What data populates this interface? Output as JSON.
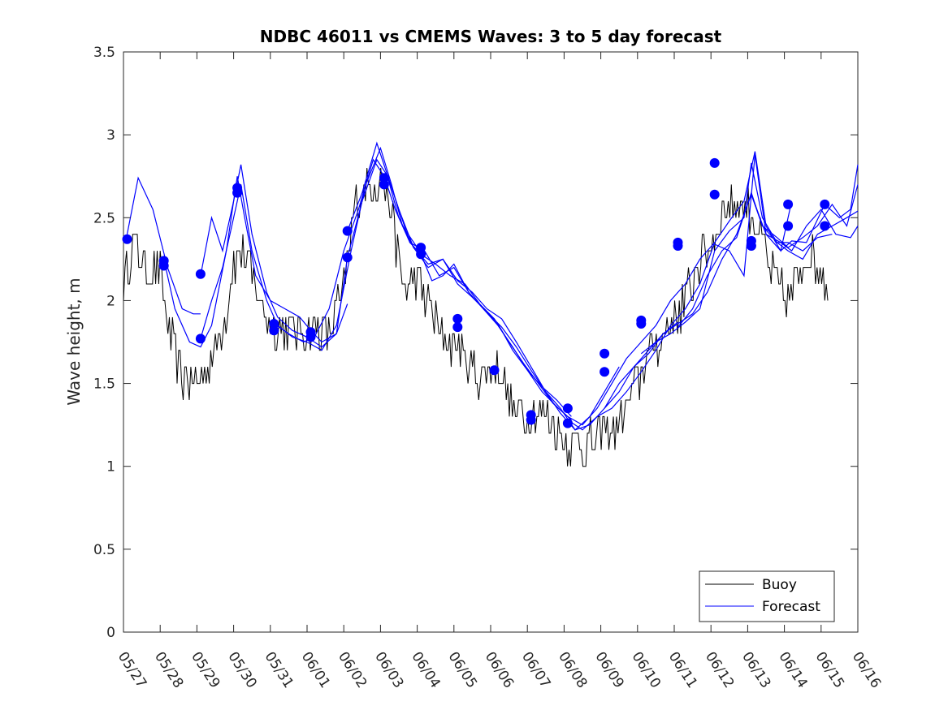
{
  "chart_data": {
    "type": "line",
    "title": "NDBC 46011 vs CMEMS Waves: 3 to 5 day forecast",
    "xlabel": "",
    "ylabel": "Wave height, m",
    "ylim": [
      0,
      3.5
    ],
    "xlim": [
      0,
      20
    ],
    "yticks": [
      0,
      0.5,
      1,
      1.5,
      2,
      2.5,
      3,
      3.5
    ],
    "ytick_labels": [
      "0",
      "0.5",
      "1",
      "1.5",
      "2",
      "2.5",
      "3",
      "3.5"
    ],
    "xtick_labels": [
      "05/27",
      "05/28",
      "05/29",
      "05/30",
      "05/31",
      "06/01",
      "06/02",
      "06/03",
      "06/04",
      "06/05",
      "06/06",
      "06/07",
      "06/08",
      "06/09",
      "06/10",
      "06/11",
      "06/12",
      "06/13",
      "06/14",
      "06/15",
      "06/16"
    ],
    "legend": {
      "position": "bottom-right",
      "entries": [
        "Buoy",
        "Forecast"
      ]
    },
    "colors": {
      "buoy": "#000000",
      "forecast": "#0000ff",
      "axis": "#262626"
    },
    "buoy_anchors": {
      "x": [
        0.0,
        0.3,
        0.6,
        1.0,
        1.3,
        1.6,
        2.0,
        2.4,
        2.8,
        3.0,
        3.3,
        3.6,
        4.0,
        4.4,
        4.8,
        5.2,
        5.6,
        6.0,
        6.3,
        6.6,
        7.0,
        7.3,
        7.6,
        8.0,
        8.3,
        8.6,
        9.0,
        9.3,
        9.6,
        10.0,
        10.3,
        10.6,
        11.0,
        11.3,
        11.6,
        12.0,
        12.3,
        12.6,
        13.0,
        13.3,
        13.6,
        14.0,
        14.3,
        14.6,
        15.0,
        15.3,
        15.6,
        16.0,
        16.3,
        16.6,
        17.0,
        17.3,
        17.6,
        18.0,
        18.3,
        18.6,
        19.0,
        19.2
      ],
      "y": [
        2.1,
        2.35,
        2.2,
        2.15,
        1.75,
        1.55,
        1.5,
        1.65,
        1.95,
        2.25,
        2.3,
        2.05,
        1.85,
        1.85,
        1.8,
        1.85,
        1.8,
        2.05,
        2.55,
        2.7,
        2.75,
        2.55,
        2.1,
        2.1,
        2.0,
        1.8,
        1.75,
        1.65,
        1.55,
        1.6,
        1.55,
        1.35,
        1.3,
        1.35,
        1.3,
        1.15,
        1.15,
        1.1,
        1.2,
        1.2,
        1.3,
        1.5,
        1.7,
        1.75,
        1.9,
        2.0,
        2.2,
        2.35,
        2.5,
        2.6,
        2.55,
        2.45,
        2.2,
        2.0,
        2.1,
        2.3,
        2.2,
        2.1
      ],
      "noise": 0.13,
      "quantum": 0.1,
      "step": 0.0417
    },
    "forecast_series": [
      {
        "x": [
          0.1,
          0.4,
          0.8,
          1.2,
          1.6,
          1.9,
          2.1
        ],
        "y": [
          2.4,
          2.74,
          2.55,
          2.2,
          1.95,
          1.92,
          1.92
        ]
      },
      {
        "x": [
          1.1,
          1.4,
          1.8,
          2.1,
          2.4,
          2.8,
          3.1,
          3.3,
          3.6,
          4.0,
          4.4,
          4.8,
          5.1
        ],
        "y": [
          2.25,
          1.95,
          1.75,
          1.72,
          1.85,
          2.3,
          2.75,
          2.5,
          2.15,
          2.0,
          1.95,
          1.9,
          1.82
        ]
      },
      {
        "x": [
          2.1,
          2.4,
          2.7,
          3.0,
          3.2,
          3.5,
          3.9,
          4.2,
          4.6,
          5.0,
          5.4,
          5.8,
          6.1
        ],
        "y": [
          2.15,
          2.5,
          2.3,
          2.6,
          2.82,
          2.4,
          2.05,
          1.9,
          1.82,
          1.78,
          1.72,
          1.8,
          1.98
        ]
      },
      {
        "x": [
          2.1,
          2.4,
          2.7,
          3.0,
          3.2,
          3.5,
          3.9,
          4.2,
          4.6,
          5.0,
          5.4,
          5.8,
          6.2,
          6.6,
          7.0,
          7.3,
          7.6,
          8.0
        ],
        "y": [
          1.77,
          2.0,
          2.2,
          2.5,
          2.7,
          2.3,
          2.0,
          1.85,
          1.78,
          1.75,
          1.7,
          1.85,
          2.3,
          2.7,
          2.92,
          2.7,
          2.45,
          2.32
        ]
      },
      {
        "x": [
          4.1,
          4.5,
          4.9,
          5.2,
          5.6,
          6.0,
          6.4,
          6.8,
          7.1,
          7.4,
          7.8,
          8.2,
          8.6,
          9.0,
          9.4,
          9.8,
          10.2,
          10.6,
          11.0,
          11.4,
          11.8,
          12.2
        ],
        "y": [
          1.86,
          1.8,
          1.75,
          1.78,
          1.95,
          2.3,
          2.55,
          2.85,
          2.75,
          2.55,
          2.35,
          2.3,
          2.15,
          2.2,
          2.05,
          1.95,
          1.85,
          1.72,
          1.58,
          1.48,
          1.4,
          1.3
        ]
      },
      {
        "x": [
          5.1,
          5.4,
          5.8,
          6.1,
          6.5,
          6.9,
          7.2,
          7.5,
          7.8,
          8.1,
          8.4,
          8.7,
          9.0,
          9.4,
          9.8,
          10.2,
          10.6,
          11.0,
          11.4,
          11.8,
          12.2
        ],
        "y": [
          1.82,
          1.75,
          1.8,
          2.26,
          2.6,
          2.85,
          2.75,
          2.55,
          2.35,
          2.28,
          2.12,
          2.15,
          2.22,
          2.05,
          1.95,
          1.86,
          1.7,
          1.58,
          1.45,
          1.36,
          1.28
        ]
      },
      {
        "x": [
          6.1,
          6.5,
          6.9,
          7.2,
          7.5,
          7.9,
          8.3,
          8.7,
          9.1,
          9.5,
          9.9,
          10.3,
          10.7,
          11.1,
          11.5,
          11.9,
          12.3,
          12.7,
          13.1,
          13.5
        ],
        "y": [
          2.42,
          2.65,
          2.95,
          2.75,
          2.55,
          2.32,
          2.2,
          2.25,
          2.12,
          2.05,
          1.95,
          1.89,
          1.75,
          1.6,
          1.45,
          1.35,
          1.22,
          1.3,
          1.45,
          1.6
        ]
      },
      {
        "x": [
          7.2,
          7.5,
          7.9,
          8.3,
          8.7,
          9.1,
          9.5,
          9.9,
          10.3,
          10.7,
          11.1,
          11.5,
          11.9,
          12.3,
          12.7,
          13.1,
          13.5,
          13.9,
          14.3,
          14.7,
          15.1
        ],
        "y": [
          2.74,
          2.5,
          2.32,
          2.22,
          2.25,
          2.1,
          2.02,
          1.93,
          1.84,
          1.72,
          1.58,
          1.45,
          1.32,
          1.22,
          1.25,
          1.35,
          1.5,
          1.6,
          1.7,
          1.8,
          1.87
        ]
      },
      {
        "x": [
          8.1,
          8.5,
          8.9,
          9.3,
          9.7,
          10.1,
          10.5,
          10.9,
          11.3,
          11.7,
          12.1,
          12.5,
          12.9,
          13.3,
          13.7,
          14.1,
          14.5,
          14.9,
          15.3,
          15.7,
          16.1
        ],
        "y": [
          2.28,
          2.22,
          2.15,
          2.1,
          1.98,
          1.89,
          1.75,
          1.62,
          1.5,
          1.38,
          1.3,
          1.25,
          1.35,
          1.5,
          1.65,
          1.75,
          1.85,
          2.0,
          2.1,
          2.25,
          2.35
        ]
      },
      {
        "x": [
          12.1,
          12.5,
          12.9,
          13.3,
          13.7,
          14.1,
          14.5,
          14.9,
          15.3,
          15.7,
          16.1,
          16.5,
          16.9,
          17.2,
          17.5,
          17.9,
          18.2
        ],
        "y": [
          1.28,
          1.22,
          1.3,
          1.35,
          1.45,
          1.57,
          1.7,
          1.85,
          1.95,
          2.1,
          2.35,
          2.48,
          2.6,
          2.9,
          2.45,
          2.3,
          2.6
        ]
      },
      {
        "x": [
          13.1,
          13.5,
          13.9,
          14.3,
          14.7,
          15.1,
          15.5,
          15.9,
          16.3,
          16.7,
          17.1,
          17.4,
          17.8,
          18.1,
          18.5,
          18.9,
          19.3
        ],
        "y": [
          1.35,
          1.45,
          1.6,
          1.68,
          1.8,
          1.86,
          1.92,
          2.05,
          2.25,
          2.4,
          2.64,
          2.45,
          2.35,
          2.35,
          2.3,
          2.38,
          2.4
        ]
      },
      {
        "x": [
          14.1,
          14.5,
          14.9,
          15.3,
          15.7,
          16.1,
          16.5,
          16.9,
          17.1,
          17.4,
          17.8,
          18.1,
          18.5,
          18.9,
          19.3,
          19.7,
          20.0
        ],
        "y": [
          1.68,
          1.75,
          1.8,
          1.87,
          1.95,
          2.3,
          2.42,
          2.5,
          2.83,
          2.5,
          2.35,
          2.3,
          2.25,
          2.4,
          2.45,
          2.5,
          2.54
        ]
      },
      {
        "x": [
          15.1,
          15.5,
          15.9,
          16.3,
          16.7,
          17.1,
          17.4,
          17.8,
          18.1,
          18.5,
          18.9,
          19.3,
          19.7,
          20.0
        ],
        "y": [
          1.84,
          1.95,
          2.15,
          2.3,
          2.38,
          2.65,
          2.45,
          2.38,
          2.32,
          2.38,
          2.45,
          2.58,
          2.45,
          2.7
        ]
      },
      {
        "x": [
          16.1,
          16.5,
          16.9,
          17.2,
          17.5,
          17.9,
          18.2,
          18.6,
          19.1,
          19.5,
          19.8,
          20.0
        ],
        "y": [
          2.34,
          2.3,
          2.15,
          2.88,
          2.4,
          2.3,
          2.36,
          2.35,
          2.58,
          2.5,
          2.55,
          2.82
        ]
      },
      {
        "x": [
          17.1,
          17.5,
          17.9,
          18.2,
          18.6,
          19.0,
          19.4,
          19.8,
          20.0
        ],
        "y": [
          2.64,
          2.4,
          2.35,
          2.3,
          2.45,
          2.55,
          2.4,
          2.38,
          2.45
        ]
      }
    ],
    "forecast_markers": {
      "x": [
        0.1,
        1.1,
        1.1,
        2.1,
        2.1,
        3.1,
        3.1,
        4.1,
        4.1,
        5.1,
        5.1,
        6.1,
        6.1,
        7.1,
        7.1,
        8.1,
        8.1,
        9.1,
        9.1,
        10.1,
        11.1,
        11.1,
        12.1,
        12.1,
        13.1,
        13.1,
        14.1,
        14.1,
        15.1,
        15.1,
        16.1,
        16.1,
        17.1,
        17.1,
        18.1,
        18.1,
        19.1,
        19.1
      ],
      "y": [
        2.37,
        2.24,
        2.21,
        2.16,
        1.77,
        2.68,
        2.65,
        1.86,
        1.82,
        1.81,
        1.78,
        2.26,
        2.42,
        2.74,
        2.7,
        2.32,
        2.28,
        1.89,
        1.84,
        1.58,
        1.31,
        1.28,
        1.35,
        1.26,
        1.68,
        1.57,
        1.88,
        1.86,
        2.35,
        2.33,
        2.83,
        2.64,
        2.36,
        2.33,
        2.58,
        2.45,
        2.58,
        2.45
      ]
    }
  }
}
